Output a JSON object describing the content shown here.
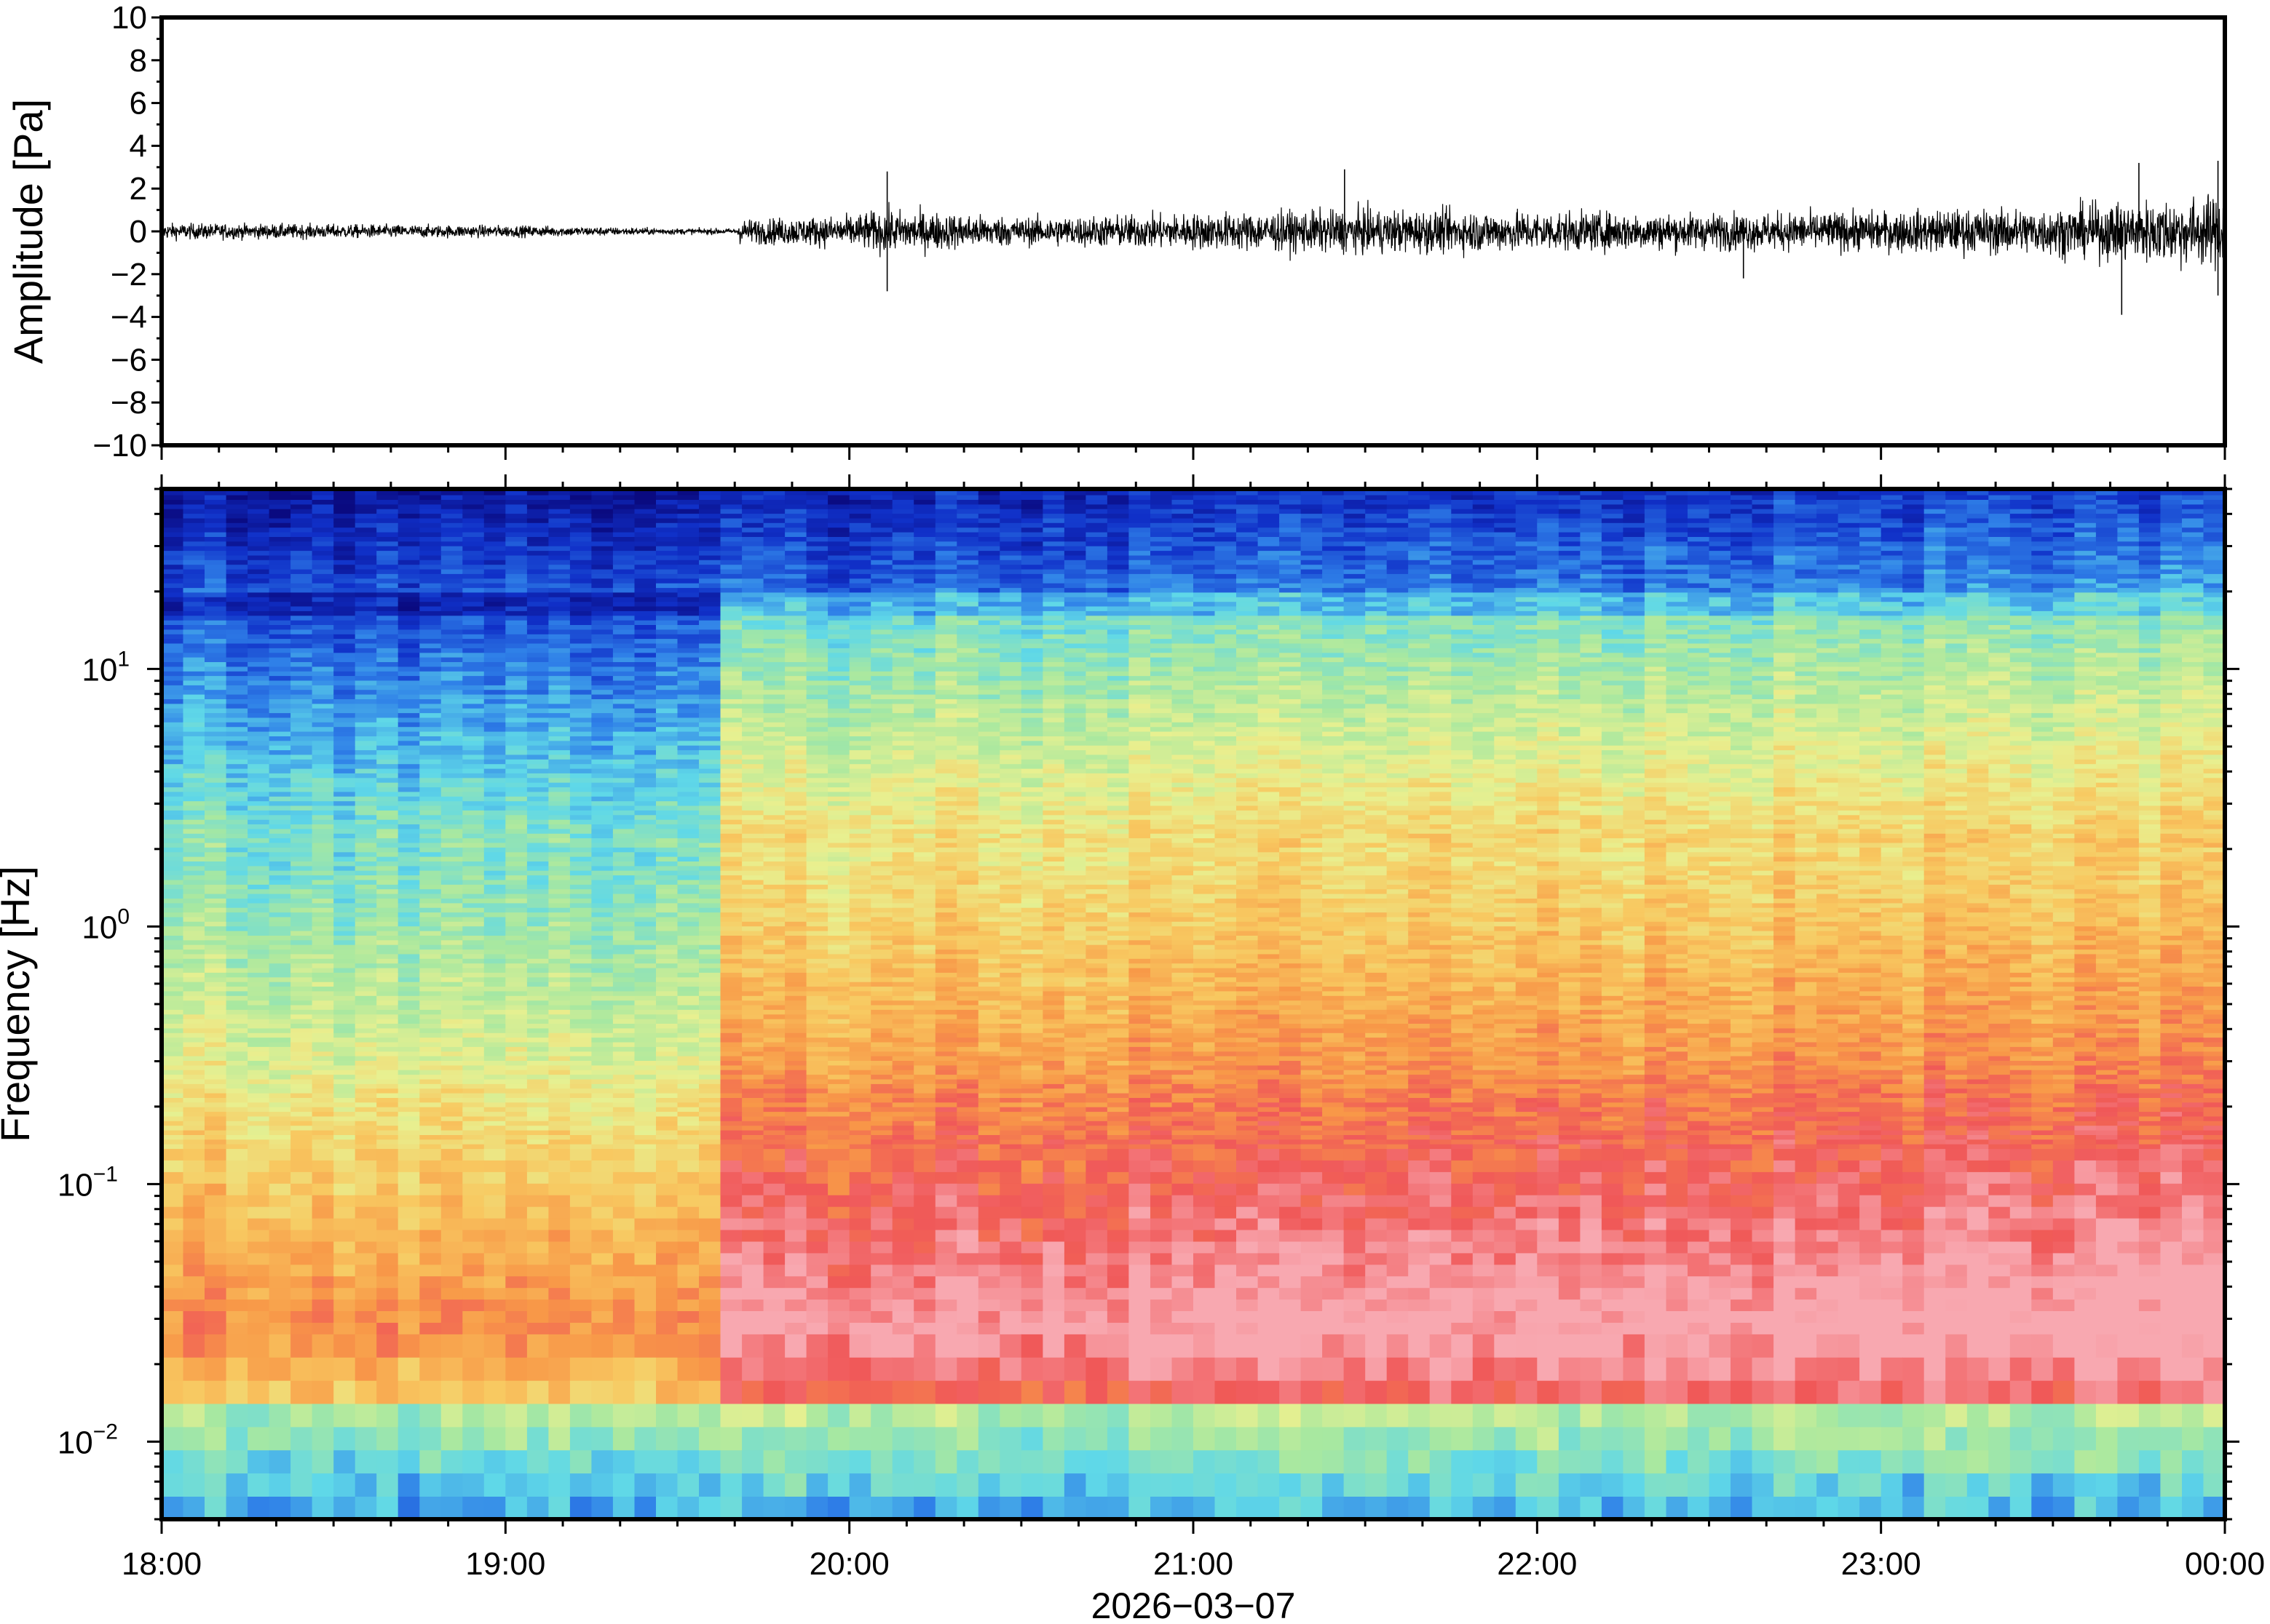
{
  "chart_data": [
    {
      "type": "line",
      "panel": "waveform",
      "ylabel": "Amplitude [Pa]",
      "ylim": [
        -10,
        10
      ],
      "yticks": [
        {
          "value": 10,
          "label": "10"
        },
        {
          "value": 8,
          "label": "8"
        },
        {
          "value": 6,
          "label": "6"
        },
        {
          "value": 4,
          "label": "4"
        },
        {
          "value": 2,
          "label": "2"
        },
        {
          "value": 0,
          "label": "0"
        },
        {
          "value": -2,
          "label": "−2"
        },
        {
          "value": -4,
          "label": "−4"
        },
        {
          "value": -6,
          "label": "−6"
        },
        {
          "value": -8,
          "label": "−8"
        },
        {
          "value": -10,
          "label": "−10"
        }
      ],
      "xlim_hours": [
        18,
        24
      ],
      "envelope": {
        "x": [
          18.0,
          18.5,
          19.0,
          19.5,
          19.67,
          19.68,
          20.0,
          20.1,
          20.5,
          21.0,
          21.5,
          22.0,
          22.5,
          23.0,
          23.5,
          23.8,
          24.0
        ],
        "y": [
          0.4,
          0.35,
          0.3,
          0.15,
          0.15,
          0.6,
          0.8,
          1.1,
          0.7,
          0.9,
          1.1,
          1.0,
          0.9,
          1.0,
          1.2,
          1.6,
          1.8
        ]
      },
      "spikes": [
        {
          "x": 20.11,
          "y": 2.8
        },
        {
          "x": 20.11,
          "y": -2.8
        },
        {
          "x": 21.44,
          "y": 2.9
        },
        {
          "x": 22.6,
          "y": -2.2
        },
        {
          "x": 23.7,
          "y": -3.9
        },
        {
          "x": 23.75,
          "y": 3.2
        },
        {
          "x": 23.98,
          "y": 3.3
        },
        {
          "x": 23.98,
          "y": -3.0
        }
      ]
    },
    {
      "type": "heatmap",
      "panel": "spectrogram",
      "ylabel": "Frequency [Hz]",
      "yscale": "log",
      "ylim": [
        0.005,
        50
      ],
      "yticks": [
        {
          "value": 10,
          "base": "10",
          "exp": "1"
        },
        {
          "value": 1,
          "base": "10",
          "exp": "0"
        },
        {
          "value": 0.1,
          "base": "10",
          "exp": "−1"
        },
        {
          "value": 0.01,
          "base": "10",
          "exp": "−2"
        }
      ],
      "colormap": [
        "#0a0a80",
        "#1030c8",
        "#2f80e8",
        "#5fd8e8",
        "#a8e8a0",
        "#e8f090",
        "#f8c860",
        "#f89848",
        "#f05858",
        "#f8a8b0"
      ],
      "xlabel": "2026−03−07",
      "xlim_hours": [
        18,
        24
      ],
      "xticks": [
        {
          "value": 18,
          "label": "18:00"
        },
        {
          "value": 19,
          "label": "19:00"
        },
        {
          "value": 20,
          "label": "20:00"
        },
        {
          "value": 21,
          "label": "21:00"
        },
        {
          "value": 22,
          "label": "22:00"
        },
        {
          "value": 23,
          "label": "23:00"
        },
        {
          "value": 24,
          "label": "00:00"
        }
      ],
      "transition_hours": 19.65
    }
  ]
}
